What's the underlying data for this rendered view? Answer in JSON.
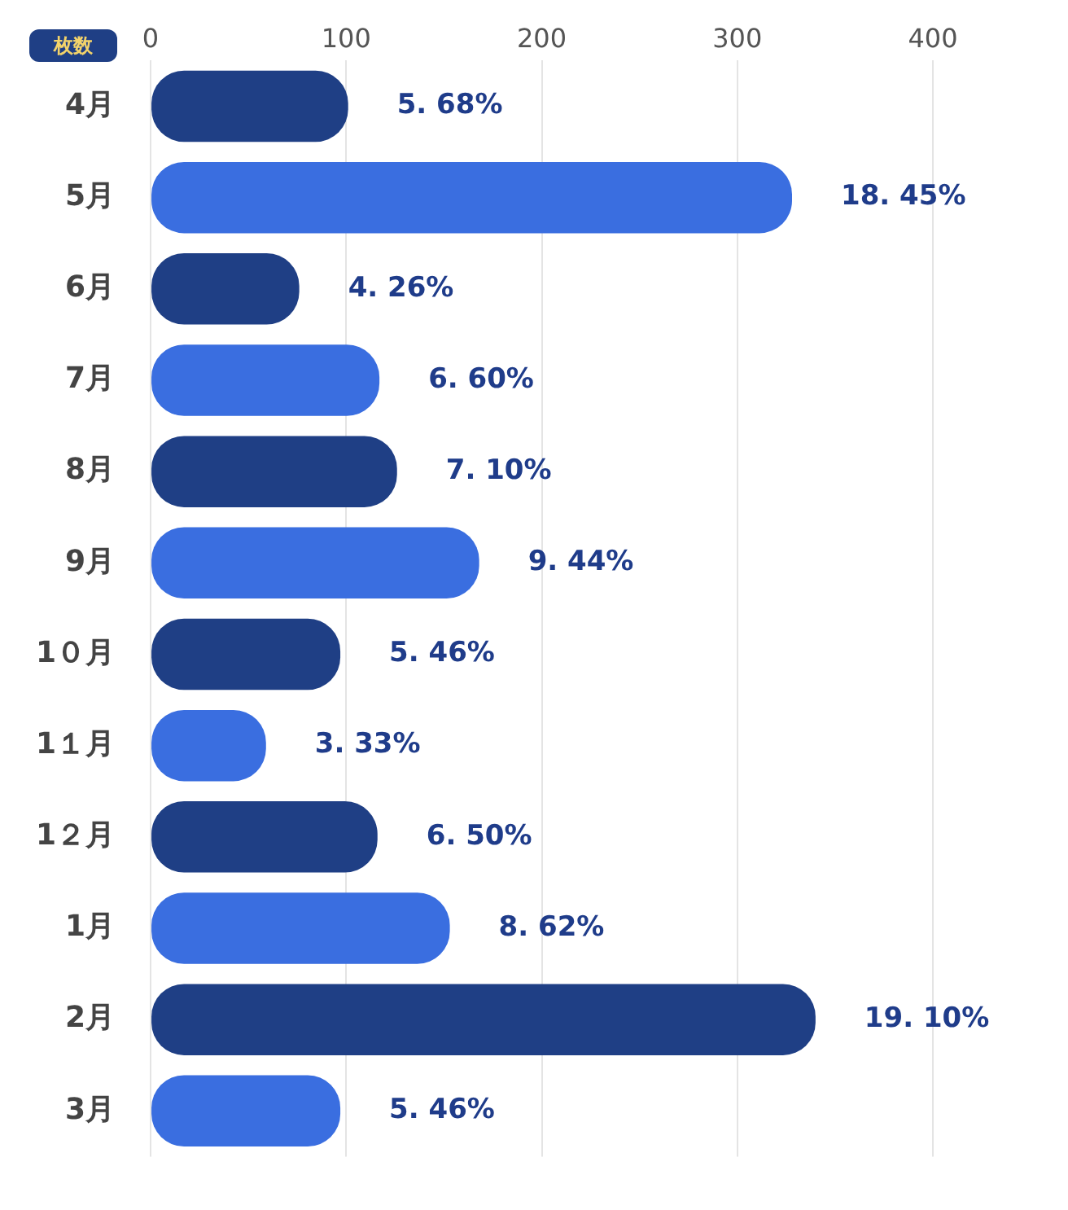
{
  "chart_data": {
    "type": "bar",
    "orientation": "horizontal",
    "xlabel": "枚数",
    "categories": [
      "4月",
      "5月",
      "6月",
      "7月",
      "8月",
      "9月",
      "1０月",
      "1１月",
      "1２月",
      "1月",
      "2月",
      "3月"
    ],
    "values": [
      101,
      328,
      76,
      117,
      126,
      168,
      97,
      59,
      116,
      153,
      340,
      97
    ],
    "colors": [
      "#1f3f85",
      "#3a6ee0",
      "#1f3f85",
      "#3a6ee0",
      "#1f3f85",
      "#3a6ee0",
      "#1f3f85",
      "#3a6ee0",
      "#1f3f85",
      "#3a6ee0",
      "#1f3f85",
      "#3a6ee0"
    ],
    "annotations": [
      {
        "text": "5. 68%",
        "x": 101,
        "y": "4月"
      },
      {
        "text": "18. 45%",
        "x": 328,
        "y": "5月"
      },
      {
        "text": "4. 26%",
        "x": 76,
        "y": "6月"
      },
      {
        "text": "6. 60%",
        "x": 117,
        "y": "7月"
      },
      {
        "text": "7. 10%",
        "x": 126,
        "y": "8月"
      },
      {
        "text": "9. 44%",
        "x": 168,
        "y": "9月"
      },
      {
        "text": "5. 46%",
        "x": 97,
        "y": "1０月"
      },
      {
        "text": "3. 33%",
        "x": 59,
        "y": "1１月"
      },
      {
        "text": "6. 50%",
        "x": 116,
        "y": "1２月"
      },
      {
        "text": "8. 62%",
        "x": 153,
        "y": "1月"
      },
      {
        "text": "19. 10%",
        "x": 340,
        "y": "2月"
      },
      {
        "text": "5. 46%",
        "x": 97,
        "y": "3月"
      }
    ],
    "xlim": [
      0,
      400
    ],
    "xticks": [
      0,
      100,
      200,
      300,
      400
    ],
    "grid": "x",
    "legend": false
  }
}
